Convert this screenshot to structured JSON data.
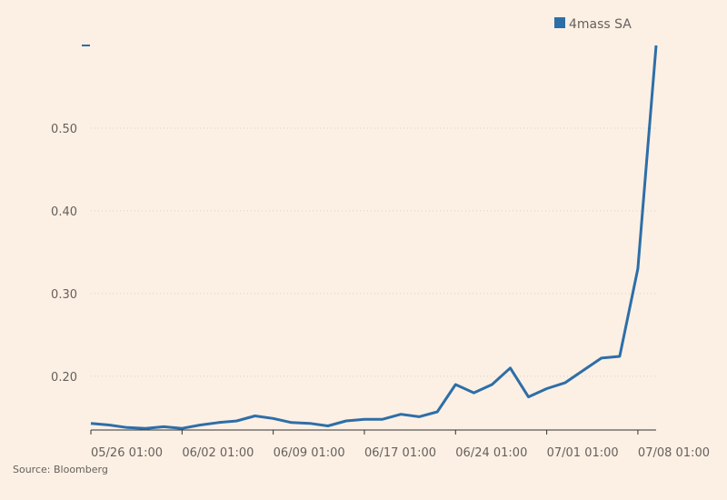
{
  "chart_data": {
    "type": "line",
    "source": "Source: Bloomberg",
    "ylim": [
      0.135,
      0.6
    ],
    "y_ticks": [
      0.2,
      0.3,
      0.4,
      0.5
    ],
    "y_tick_labels": [
      "0.20",
      "0.30",
      "0.40",
      "0.50"
    ],
    "x_ticks": [
      0,
      5,
      10,
      15,
      20,
      25,
      30
    ],
    "x_tick_labels": [
      "05/26 01:00",
      "06/02 01:00",
      "06/09 01:00",
      "06/17 01:00",
      "06/24 01:00",
      "07/01 01:00",
      "07/08 01:00"
    ],
    "grid": true,
    "legend": "top-right",
    "series": [
      {
        "name": "4mass SA",
        "color": "#2e6ea7",
        "values": [
          0.143,
          0.141,
          0.138,
          0.137,
          0.139,
          0.137,
          0.141,
          0.144,
          0.146,
          0.152,
          0.149,
          0.144,
          0.143,
          0.14,
          0.146,
          0.148,
          0.148,
          0.154,
          0.151,
          0.157,
          0.19,
          0.18,
          0.19,
          0.21,
          0.175,
          0.185,
          0.192,
          0.207,
          0.222,
          0.224,
          0.33,
          0.6
        ]
      }
    ]
  }
}
